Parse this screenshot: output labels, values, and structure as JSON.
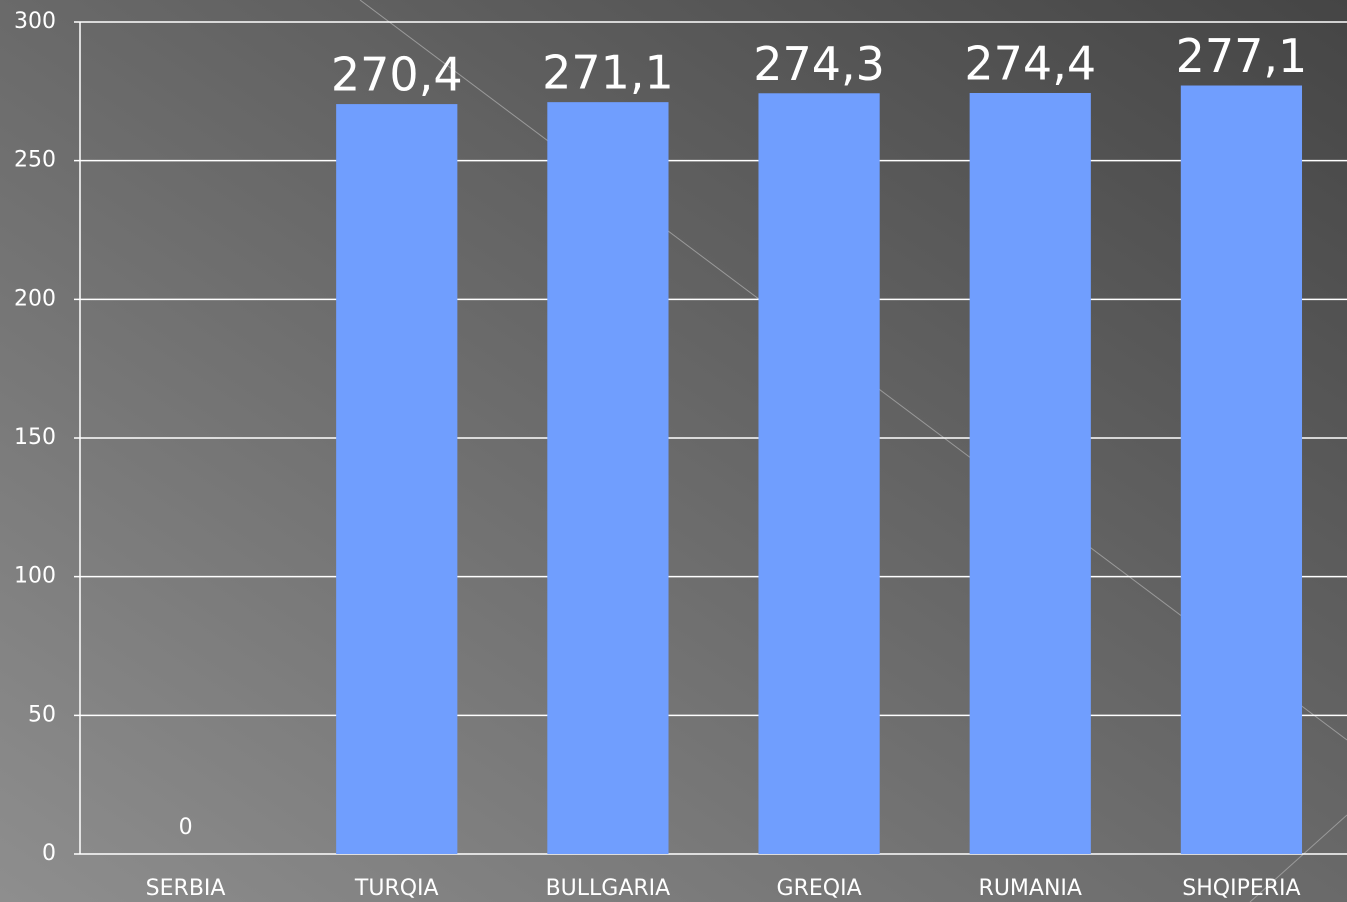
{
  "chart_data": {
    "type": "bar",
    "categories": [
      "SERBIA",
      "TURQIA",
      "BULLGARIA",
      "GREQIA",
      "RUMANIA",
      "SHQIPERIA"
    ],
    "values": [
      0,
      270.4,
      271.1,
      274.3,
      274.4,
      277.1
    ],
    "value_labels": [
      "0",
      "270,4",
      "271,1",
      "274,3",
      "274,4",
      "277,1"
    ],
    "color": "#709efe",
    "ylim": [
      0,
      300
    ],
    "yticks": [
      0,
      50,
      100,
      150,
      200,
      250,
      300
    ],
    "grid": true
  }
}
